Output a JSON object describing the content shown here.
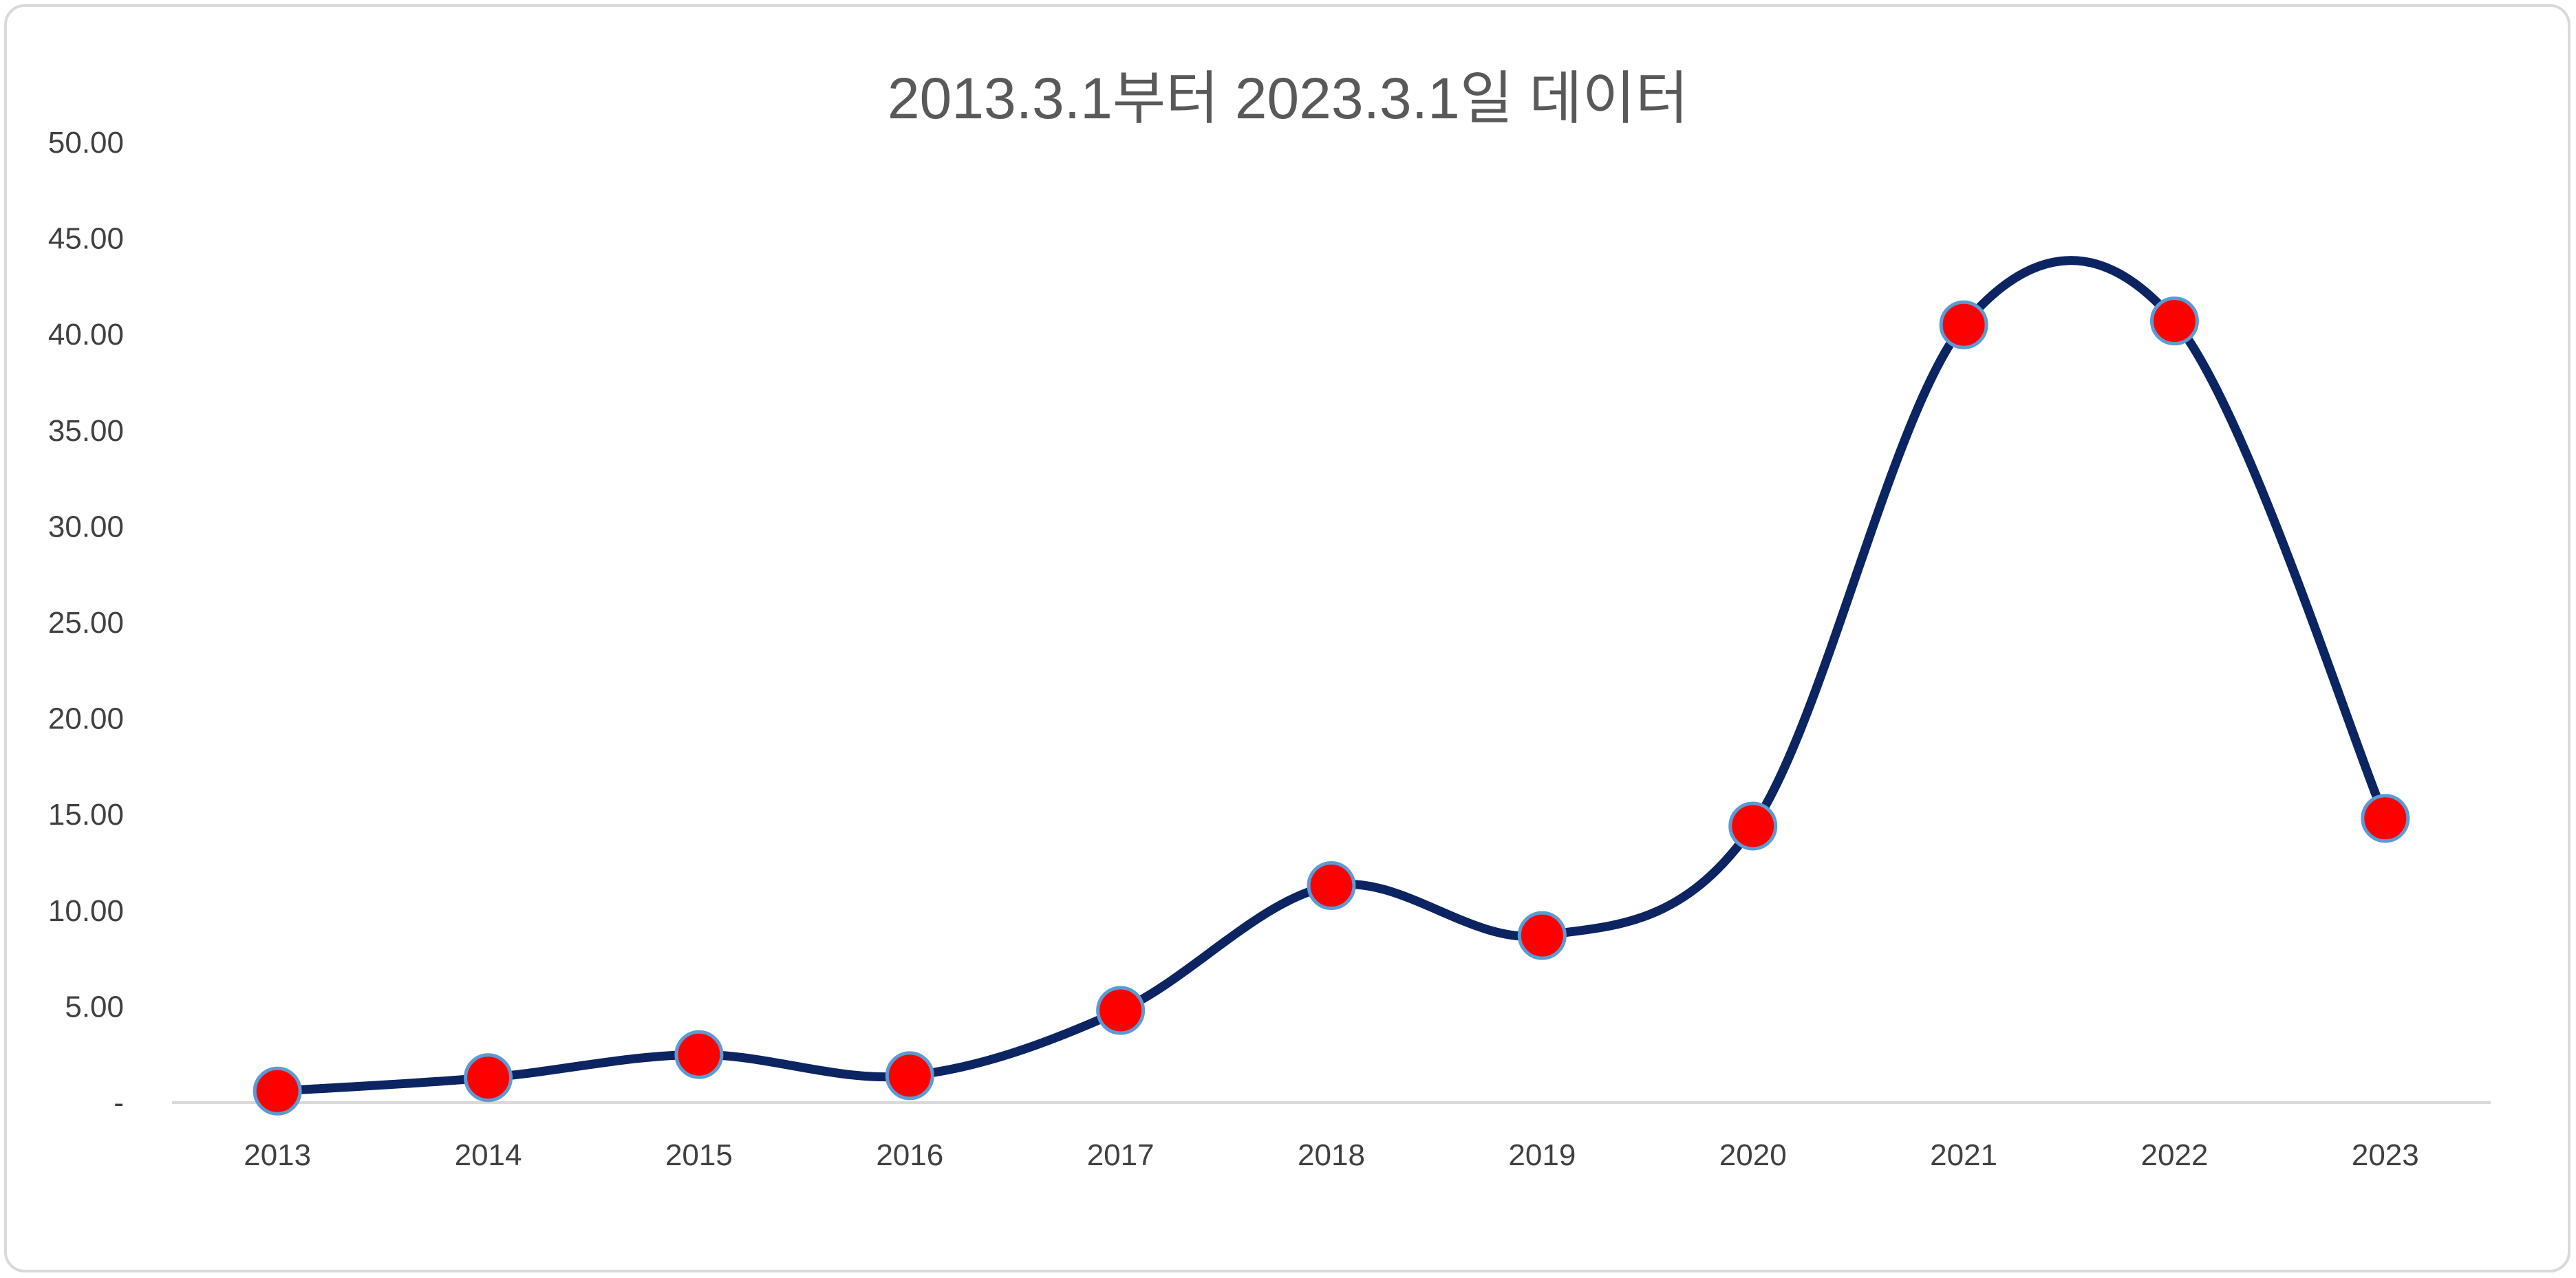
{
  "chart_data": {
    "type": "line",
    "title": "2013.3.1부터 2023.3.1일 데이터",
    "xlabel": "",
    "ylabel": "",
    "categories": [
      "2013",
      "2014",
      "2015",
      "2016",
      "2017",
      "2018",
      "2019",
      "2020",
      "2021",
      "2022",
      "2023"
    ],
    "series": [
      {
        "values": [
          0.6,
          1.3,
          2.5,
          1.4,
          4.8,
          11.3,
          8.7,
          14.4,
          40.5,
          40.7,
          14.8
        ]
      }
    ],
    "ylim": [
      0,
      50
    ],
    "yticks": [
      "-",
      "5.00",
      "10.00",
      "15.00",
      "20.00",
      "25.00",
      "30.00",
      "35.00",
      "40.00",
      "45.00",
      "50.00"
    ],
    "smooth": true,
    "grid": false,
    "legend": "none",
    "line_color": "#0c2461",
    "marker_color": "#ff0000",
    "marker_edge_color": "#5b9bd5"
  }
}
